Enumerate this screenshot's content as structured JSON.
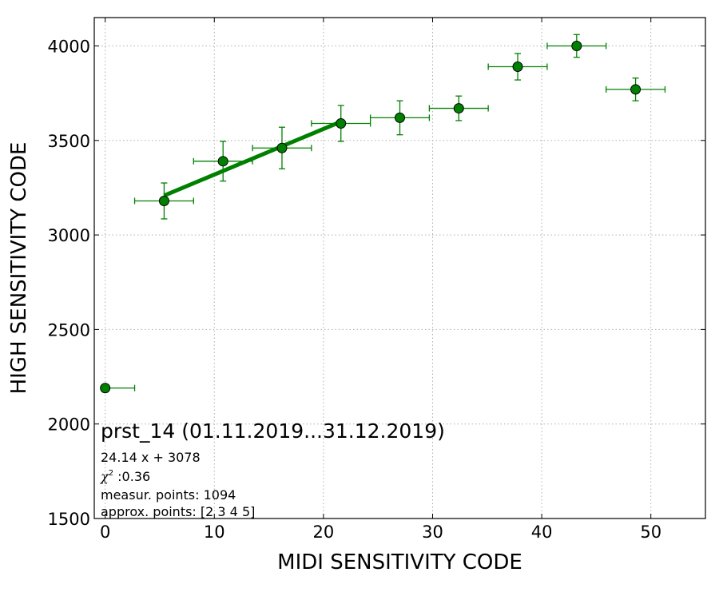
{
  "chart_data": {
    "type": "scatter",
    "xlabel": "MIDI SENSITIVITY CODE",
    "ylabel": "HIGH SENSITIVITY CODE",
    "xlim": [
      -1,
      55
    ],
    "ylim": [
      1500,
      4150
    ],
    "xticks": [
      0,
      10,
      20,
      30,
      40,
      50
    ],
    "yticks": [
      1500,
      2000,
      2500,
      3000,
      3500,
      4000
    ],
    "grid": true,
    "colors": {
      "points": "#008000",
      "fit_line": "#008000",
      "marker_edge": "#000000"
    },
    "points": [
      {
        "x": 0.0,
        "y": 2190,
        "xerr_low": 0.0,
        "xerr_high": 2.7,
        "yerr": 0
      },
      {
        "x": 5.4,
        "y": 3180,
        "xerr_low": 2.7,
        "xerr_high": 2.7,
        "yerr": 95
      },
      {
        "x": 10.8,
        "y": 3390,
        "xerr_low": 2.7,
        "xerr_high": 2.7,
        "yerr": 105
      },
      {
        "x": 16.2,
        "y": 3460,
        "xerr_low": 2.7,
        "xerr_high": 2.7,
        "yerr": 110
      },
      {
        "x": 21.6,
        "y": 3590,
        "xerr_low": 2.7,
        "xerr_high": 2.7,
        "yerr": 95
      },
      {
        "x": 27.0,
        "y": 3620,
        "xerr_low": 2.7,
        "xerr_high": 2.7,
        "yerr": 90
      },
      {
        "x": 32.4,
        "y": 3670,
        "xerr_low": 2.7,
        "xerr_high": 2.7,
        "yerr": 65
      },
      {
        "x": 37.8,
        "y": 3890,
        "xerr_low": 2.7,
        "xerr_high": 2.7,
        "yerr": 70
      },
      {
        "x": 43.2,
        "y": 4000,
        "xerr_low": 2.7,
        "xerr_high": 2.7,
        "yerr": 60
      },
      {
        "x": 48.6,
        "y": 3770,
        "xerr_low": 2.7,
        "xerr_high": 2.7,
        "yerr": 60
      }
    ],
    "fit": {
      "slope": 24.14,
      "intercept": 3078,
      "x_range": [
        5.4,
        21.6
      ]
    },
    "annotations": {
      "title": "prst_14 (01.11.2019...31.12.2019)",
      "equation": "24.14 x + 3078",
      "chi_symbol": "χ",
      "chi_sup": "2",
      "chi_value": " :0.36",
      "measur_points": "measur. points: 1094",
      "approx_points": "approx. points: [2 3 4 5]"
    }
  }
}
